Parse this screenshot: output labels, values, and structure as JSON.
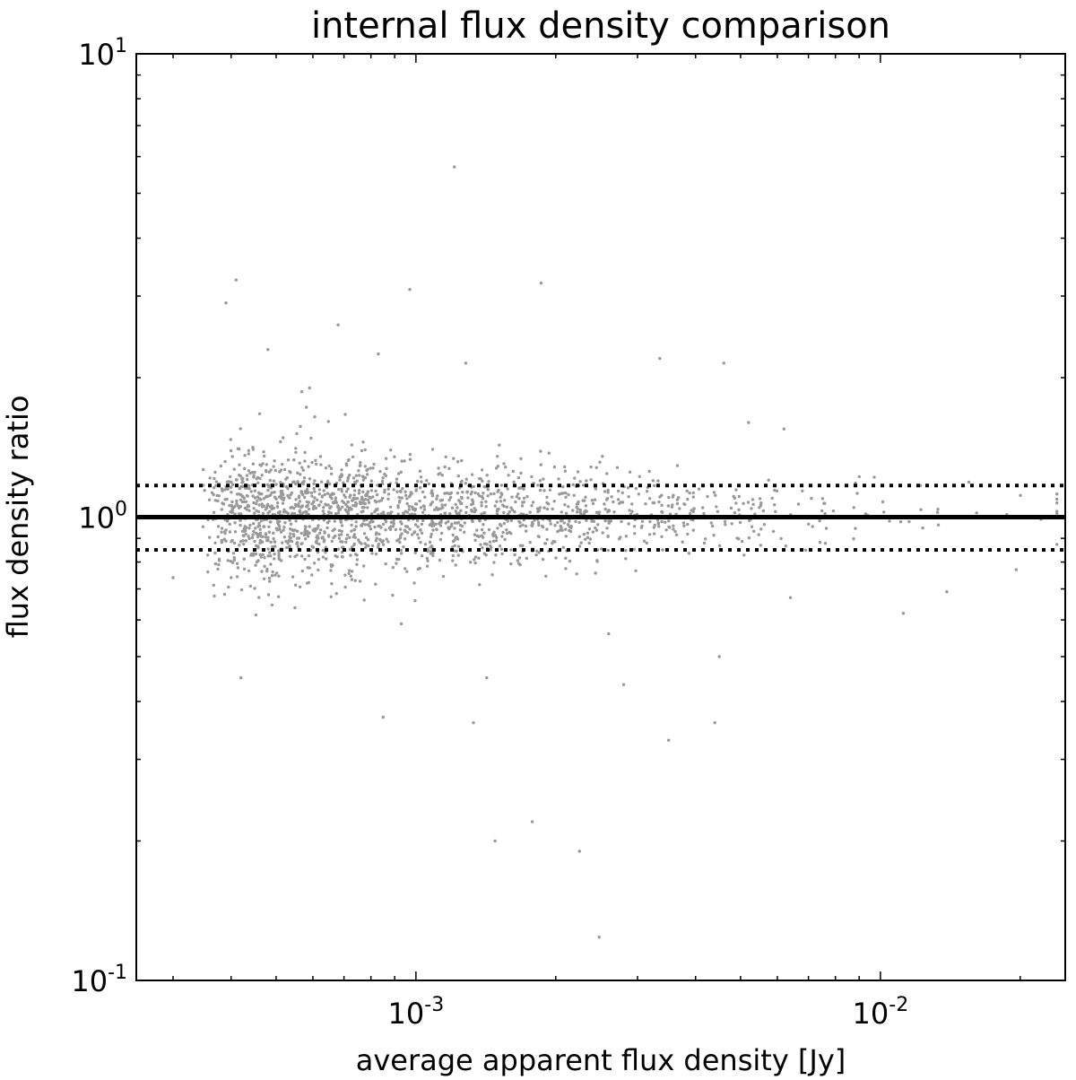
{
  "chart_data": {
    "type": "scatter",
    "title": "internal flux density comparison",
    "xlabel": "average apparent flux density [Jy]",
    "ylabel": "flux density ratio",
    "xscale": "log",
    "yscale": "log",
    "xlim": [
      0.00025,
      0.025
    ],
    "ylim": [
      0.1,
      10
    ],
    "x_ticks": [
      {
        "value": 0.001,
        "base": "10",
        "exp": "-3"
      },
      {
        "value": 0.01,
        "base": "10",
        "exp": "-2"
      }
    ],
    "y_ticks": [
      {
        "value": 0.1,
        "base": "10",
        "exp": "-1"
      },
      {
        "value": 1,
        "base": "10",
        "exp": "0"
      },
      {
        "value": 10,
        "base": "10",
        "exp": "1"
      }
    ],
    "reference_lines": [
      {
        "y": 1.0,
        "style": "solid"
      },
      {
        "y": 1.17,
        "style": "dotted"
      },
      {
        "y": 0.85,
        "style": "dotted"
      }
    ],
    "grid": false,
    "marker_color": "#999999",
    "line_color": "#000000",
    "highlighted_points": [
      {
        "x": 0.00121,
        "y": 5.7
      },
      {
        "x": 0.00041,
        "y": 3.25
      },
      {
        "x": 0.00039,
        "y": 2.9
      },
      {
        "x": 0.00097,
        "y": 3.1
      },
      {
        "x": 0.00186,
        "y": 3.2
      },
      {
        "x": 0.00068,
        "y": 2.6
      },
      {
        "x": 0.00048,
        "y": 2.3
      },
      {
        "x": 0.00083,
        "y": 2.25
      },
      {
        "x": 0.00128,
        "y": 2.15
      },
      {
        "x": 0.00335,
        "y": 2.2
      },
      {
        "x": 0.0046,
        "y": 2.15
      },
      {
        "x": 0.0044,
        "y": 0.36
      },
      {
        "x": 0.00059,
        "y": 1.9
      },
      {
        "x": 0.0052,
        "y": 1.6
      },
      {
        "x": 0.0062,
        "y": 1.55
      },
      {
        "x": 0.0097,
        "y": 1.22
      },
      {
        "x": 0.0122,
        "y": 1.17
      },
      {
        "x": 0.0139,
        "y": 0.69
      },
      {
        "x": 0.0112,
        "y": 0.62
      },
      {
        "x": 0.0196,
        "y": 0.77
      },
      {
        "x": 0.00042,
        "y": 0.45
      },
      {
        "x": 0.00085,
        "y": 0.37
      },
      {
        "x": 0.00133,
        "y": 0.36
      },
      {
        "x": 0.00142,
        "y": 0.45
      },
      {
        "x": 0.00148,
        "y": 0.2
      },
      {
        "x": 0.00178,
        "y": 0.22
      },
      {
        "x": 0.00225,
        "y": 0.19
      },
      {
        "x": 0.00248,
        "y": 0.124
      },
      {
        "x": 0.0028,
        "y": 0.435
      },
      {
        "x": 0.0035,
        "y": 0.33
      },
      {
        "x": 0.0003,
        "y": 0.74
      },
      {
        "x": 0.0026,
        "y": 0.56
      },
      {
        "x": 0.0045,
        "y": 0.5
      },
      {
        "x": 0.0064,
        "y": 0.67
      },
      {
        "x": 0.0155,
        "y": 1.19
      }
    ]
  }
}
